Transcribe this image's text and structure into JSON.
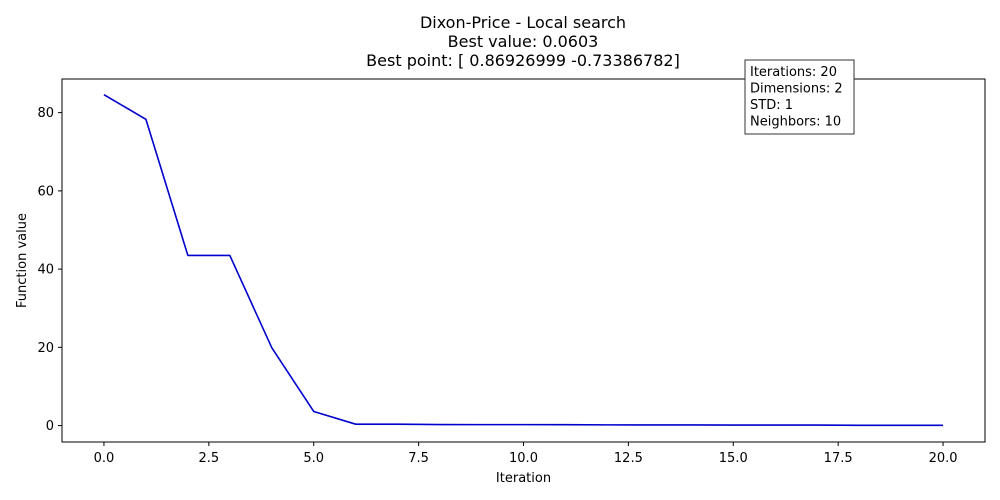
{
  "chart_data": {
    "type": "line",
    "title_lines": [
      "Dixon-Price - Local search",
      "Best value: 0.0603",
      "Best point: [ 0.86926999 -0.73386782]"
    ],
    "xlabel": "Iteration",
    "ylabel": "Function value",
    "xlim": [
      -1,
      21
    ],
    "ylim": [
      -4.2,
      88.6
    ],
    "xticks": [
      0.0,
      2.5,
      5.0,
      7.5,
      10.0,
      12.5,
      15.0,
      17.5,
      20.0
    ],
    "xtick_labels": [
      "0.0",
      "2.5",
      "5.0",
      "7.5",
      "10.0",
      "12.5",
      "15.0",
      "17.5",
      "20.0"
    ],
    "yticks": [
      0,
      20,
      40,
      60,
      80
    ],
    "ytick_labels": [
      "0",
      "20",
      "40",
      "60",
      "80"
    ],
    "grid": false,
    "series": [
      {
        "color": "#0000cc",
        "x": [
          0,
          1,
          2,
          3,
          4,
          5,
          6,
          7,
          8,
          9,
          10,
          11,
          12,
          13,
          14,
          15,
          16,
          17,
          18,
          19,
          20
        ],
        "y": [
          84.6,
          78.3,
          43.5,
          43.5,
          19.9,
          3.6,
          0.35,
          0.35,
          0.25,
          0.24,
          0.24,
          0.23,
          0.18,
          0.17,
          0.16,
          0.14,
          0.13,
          0.12,
          0.065,
          0.062,
          0.0603
        ]
      }
    ],
    "info_box": {
      "position": "top-right",
      "lines": [
        "Iterations: 20",
        "Dimensions: 2",
        "STD: 1",
        "Neighbors: 10"
      ]
    }
  }
}
